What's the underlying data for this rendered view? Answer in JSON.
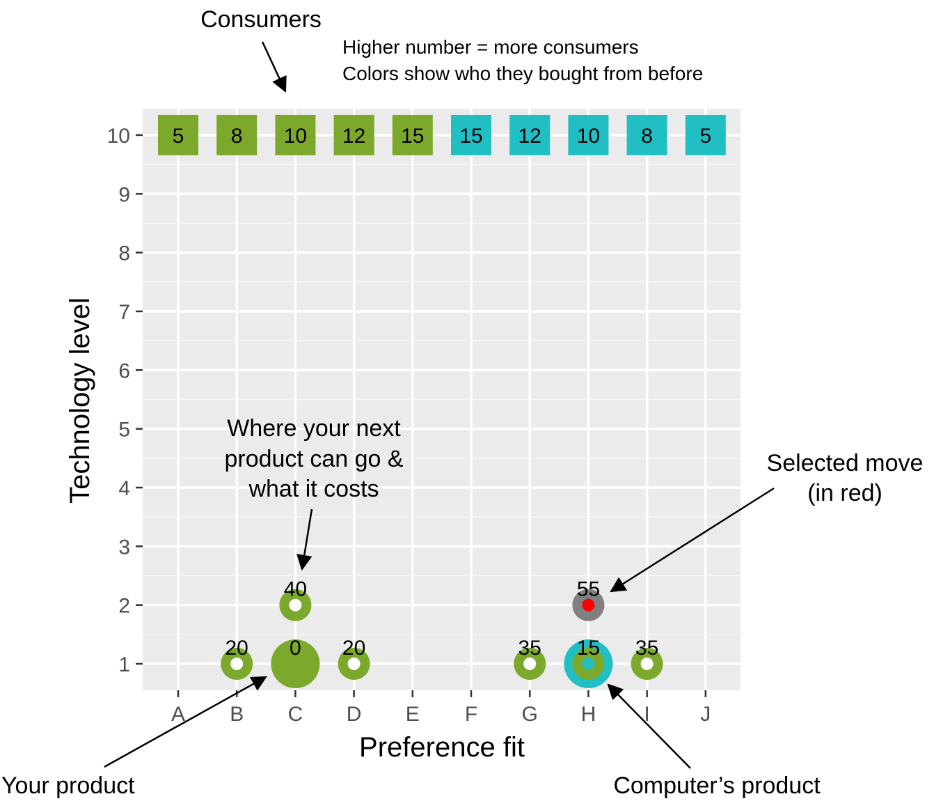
{
  "chart_data": {
    "type": "scatter",
    "xlabel": "Preference fit",
    "ylabel": "Technology level",
    "x_categories": [
      "A",
      "B",
      "C",
      "D",
      "E",
      "F",
      "G",
      "H",
      "I",
      "J"
    ],
    "y_ticks": [
      1,
      2,
      3,
      4,
      5,
      6,
      7,
      8,
      9,
      10
    ],
    "ylim": [
      0.55,
      10.45
    ],
    "grid": true,
    "colors": {
      "green": "#7ca82b",
      "teal": "#20bfc4",
      "gray": "#808080",
      "red": "#ff0000",
      "panel": "#ebebeb"
    },
    "consumers": {
      "tech_level": 10,
      "counts": [
        5,
        8,
        10,
        12,
        15,
        15,
        12,
        10,
        8,
        5
      ],
      "colors": [
        "green",
        "green",
        "green",
        "green",
        "green",
        "teal",
        "teal",
        "teal",
        "teal",
        "teal"
      ]
    },
    "your_product": {
      "x": "C",
      "y": 1,
      "color": "green",
      "cost": "0"
    },
    "computer_product": {
      "x": "H",
      "y": 1,
      "color": "teal"
    },
    "possible_moves": [
      {
        "x": "B",
        "y": 1,
        "cost": "20"
      },
      {
        "x": "D",
        "y": 1,
        "cost": "20"
      },
      {
        "x": "C",
        "y": 2,
        "cost": "40"
      },
      {
        "x": "G",
        "y": 1,
        "cost": "35"
      },
      {
        "x": "I",
        "y": 1,
        "cost": "35"
      },
      {
        "x": "H",
        "y": 1,
        "cost": "15"
      }
    ],
    "selected_move": {
      "x": "H",
      "y": 2,
      "cost": "55"
    },
    "annotations": {
      "consumers": "Consumers",
      "legend_line1": "Higher number = more consumers",
      "legend_line2": "Colors show who they bought from before",
      "next_product_line1": "Where your next",
      "next_product_line2": "product can go &",
      "next_product_line3": "what it costs",
      "selected_line1": "Selected move",
      "selected_line2": "(in red)",
      "your_product": "Your product",
      "computer_product": "Computer’s product"
    }
  }
}
